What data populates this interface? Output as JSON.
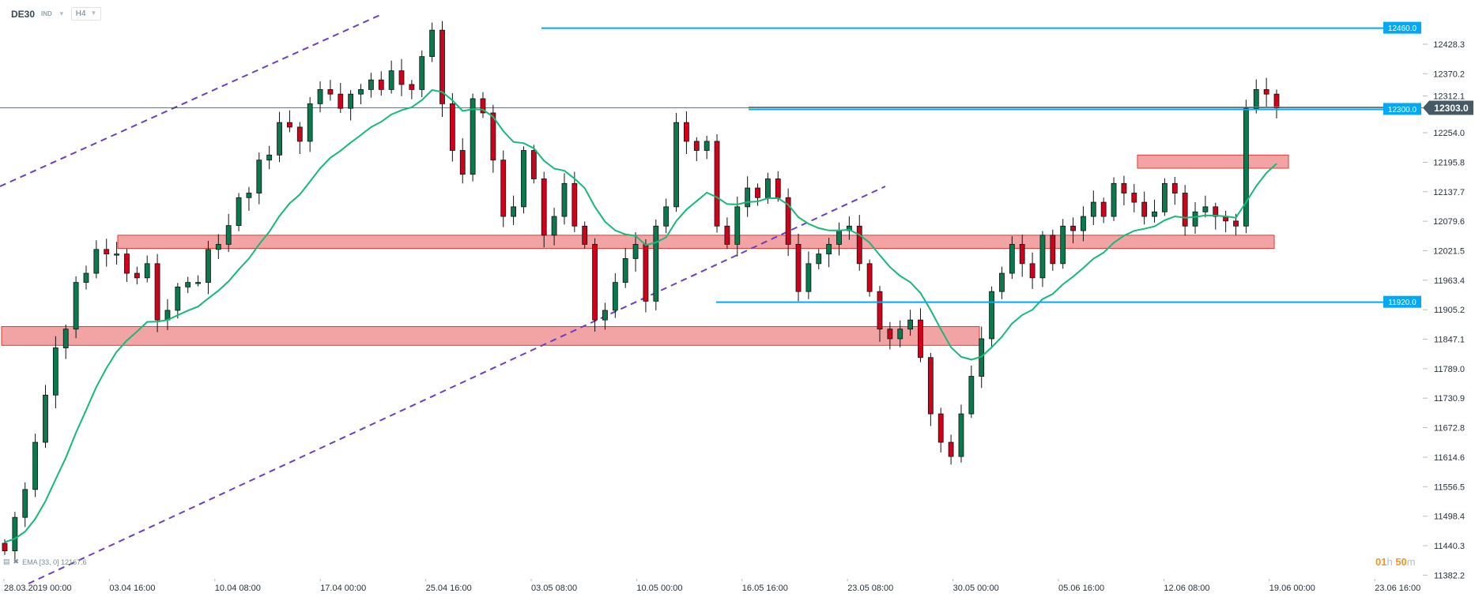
{
  "header": {
    "symbol": "DE30",
    "market": "IND",
    "timeframe": "H4"
  },
  "indicator": {
    "label": "EMA [33, 0] 12167.6",
    "period": 33
  },
  "countdown": {
    "hours": "01",
    "h": "h",
    "minutes": "50",
    "m": "m"
  },
  "colors": {
    "up": "#0a7a4e",
    "down": "#d0021b",
    "ema": "#17b978",
    "level": "#03a9f4",
    "zone_fill": "#f19a9a",
    "zone_border": "#e53935",
    "trend": "#6a3fc8",
    "price_tag": "#455a64"
  },
  "chart_data": {
    "type": "candlestick",
    "title": "",
    "price_ticks": [
      "12428.3",
      "12370.2",
      "12312.1",
      "12254.0",
      "12195.8",
      "12137.7",
      "12079.6",
      "12021.5",
      "11963.4",
      "11905.2",
      "11847.1",
      "11789.0",
      "11730.9",
      "11672.8",
      "11614.6",
      "11556.5",
      "11498.4",
      "11440.3",
      "11382.2"
    ],
    "time_ticks": [
      "28.03.2019  00:00",
      "03.04 16:00",
      "10.04 08:00",
      "17.04 00:00",
      "25.04 16:00",
      "03.05 08:00",
      "10.05 00:00",
      "16.05 16:00",
      "23.05 08:00",
      "30.05 00:00",
      "05.06 16:00",
      "12.06 08:00",
      "19.06 00:00",
      "23.06 16:00"
    ],
    "closes": [
      11430,
      11496,
      11551,
      11644,
      11737,
      11830,
      11867,
      11959,
      11977,
      12024,
      12015,
      12015,
      11977,
      11968,
      11996,
      11885,
      11904,
      11950,
      11959,
      11959,
      12024,
      12034,
      12071,
      12126,
      12135,
      12200,
      12210,
      12274,
      12265,
      12237,
      12311,
      12339,
      12330,
      12302,
      12330,
      12339,
      12358,
      12339,
      12376,
      12349,
      12339,
      12404,
      12456,
      12311,
      12219,
      12172,
      12321,
      12293,
      12200,
      12089,
      12108,
      12219,
      12163,
      12052,
      12089,
      12154,
      12070,
      12034,
      11885,
      11904,
      11959,
      12006,
      12034,
      11922,
      12070,
      12108,
      12274,
      12237,
      12219,
      12237,
      12070,
      12034,
      12108,
      12145,
      12126,
      12163,
      12126,
      12034,
      11941,
      11996,
      12015,
      12034,
      12061,
      12070,
      11996,
      11941,
      11867,
      11848,
      11867,
      11885,
      11811,
      11700,
      11644,
      11616,
      11700,
      11774,
      11848,
      11941,
      11977,
      12034,
      11996,
      11968,
      12052,
      11996,
      12070,
      12061,
      12089,
      12117,
      12089,
      12154,
      12135,
      12117,
      12089,
      12098,
      12154,
      12135,
      12070,
      12098,
      12108,
      12089,
      12080,
      12070,
      12302,
      12339,
      12330,
      12303
    ],
    "levels": [
      {
        "price": 12460.0,
        "label": "12460.0"
      },
      {
        "price": 12300.0,
        "label": "12300.0"
      },
      {
        "price": 11920.0,
        "label": "11920.0"
      }
    ],
    "zones": [
      {
        "low": 12026,
        "high": 12052
      },
      {
        "low": 11835,
        "high": 11872
      },
      {
        "low": 12184,
        "high": 12210
      }
    ],
    "last_price": {
      "price": 12303.0,
      "label": "12303.0"
    }
  }
}
